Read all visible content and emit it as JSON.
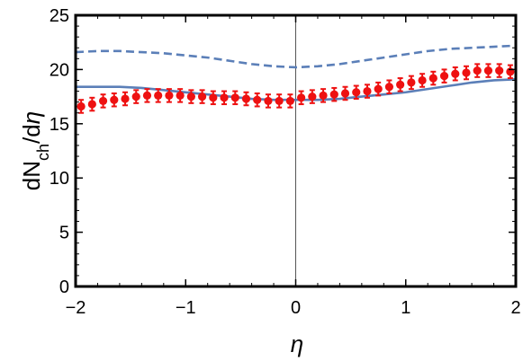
{
  "chart_data": {
    "type": "scatter",
    "title": "",
    "xlabel": "η",
    "ylabel": {
      "base": "dN",
      "sub": "ch",
      "tail": "/d",
      "var": "η"
    },
    "xlim": [
      -2,
      2
    ],
    "ylim": [
      0,
      25
    ],
    "x_ticks": [
      -2,
      -1,
      0,
      1,
      2
    ],
    "x_tick_labels": [
      "−2",
      "−1",
      "0",
      "1",
      "2"
    ],
    "y_ticks": [
      0,
      5,
      10,
      15,
      20,
      25
    ],
    "y_tick_labels": [
      "0",
      "5",
      "10",
      "15",
      "20",
      "25"
    ],
    "grid": false,
    "legend": "none",
    "series": [
      {
        "kind": "points-with-errorbars",
        "color": "#ee1111",
        "x": [
          -1.95,
          -1.85,
          -1.75,
          -1.65,
          -1.55,
          -1.45,
          -1.35,
          -1.25,
          -1.15,
          -1.05,
          -0.95,
          -0.85,
          -0.75,
          -0.65,
          -0.55,
          -0.45,
          -0.35,
          -0.25,
          -0.15,
          -0.05,
          0.05,
          0.15,
          0.25,
          0.35,
          0.45,
          0.55,
          0.65,
          0.75,
          0.85,
          0.95,
          1.05,
          1.15,
          1.25,
          1.35,
          1.45,
          1.55,
          1.65,
          1.75,
          1.85,
          1.95
        ],
        "y": [
          16.6,
          16.8,
          17.1,
          17.2,
          17.3,
          17.5,
          17.6,
          17.6,
          17.6,
          17.6,
          17.5,
          17.5,
          17.4,
          17.4,
          17.4,
          17.3,
          17.2,
          17.1,
          17.1,
          17.1,
          17.4,
          17.5,
          17.6,
          17.7,
          17.8,
          17.9,
          18.0,
          18.2,
          18.4,
          18.6,
          18.8,
          19.0,
          19.2,
          19.4,
          19.6,
          19.7,
          19.9,
          19.9,
          19.9,
          19.8
        ],
        "yerr": [
          0.6,
          0.6,
          0.6,
          0.6,
          0.6,
          0.6,
          0.6,
          0.6,
          0.6,
          0.6,
          0.6,
          0.6,
          0.6,
          0.6,
          0.6,
          0.6,
          0.6,
          0.6,
          0.6,
          0.6,
          0.6,
          0.6,
          0.6,
          0.6,
          0.6,
          0.6,
          0.6,
          0.6,
          0.6,
          0.6,
          0.6,
          0.6,
          0.6,
          0.6,
          0.6,
          0.6,
          0.6,
          0.6,
          0.6,
          0.6
        ]
      },
      {
        "kind": "line",
        "style": "dashed",
        "color": "#5b7fb8",
        "x": [
          -2.0,
          -1.8,
          -1.6,
          -1.4,
          -1.2,
          -1.0,
          -0.8,
          -0.6,
          -0.4,
          -0.2,
          0.0,
          0.2,
          0.4,
          0.6,
          0.8,
          1.0,
          1.2,
          1.4,
          1.6,
          1.8,
          2.0
        ],
        "y": [
          21.6,
          21.7,
          21.7,
          21.6,
          21.5,
          21.3,
          21.1,
          20.8,
          20.5,
          20.3,
          20.2,
          20.3,
          20.5,
          20.8,
          21.1,
          21.4,
          21.7,
          21.9,
          22.0,
          22.1,
          22.2
        ]
      },
      {
        "kind": "line",
        "style": "solid",
        "color": "#5b7fb8",
        "x": [
          -2.0,
          -1.8,
          -1.6,
          -1.4,
          -1.2,
          -1.0,
          -0.8,
          -0.6,
          -0.4,
          -0.2,
          0.0,
          0.2,
          0.4,
          0.6,
          0.8,
          1.0,
          1.2,
          1.4,
          1.6,
          1.8,
          2.0
        ],
        "y": [
          18.4,
          18.4,
          18.4,
          18.3,
          18.1,
          17.9,
          17.7,
          17.5,
          17.3,
          17.2,
          17.2,
          17.2,
          17.3,
          17.5,
          17.7,
          17.9,
          18.2,
          18.5,
          18.8,
          19.0,
          19.1
        ]
      }
    ]
  }
}
